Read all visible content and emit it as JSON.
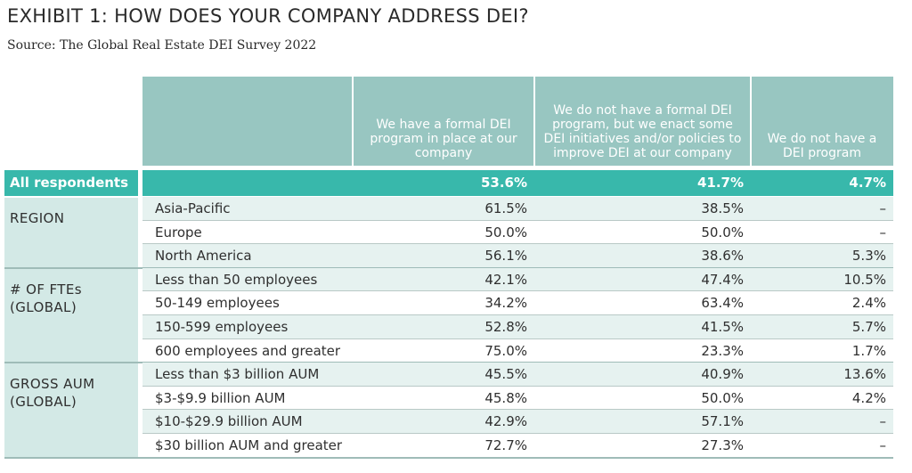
{
  "header": {
    "title": "EXHIBIT 1: HOW DOES YOUR COMPANY ADDRESS DEI?",
    "source": "Source: The Global Real Estate DEI Survey 2022"
  },
  "chart_data": {
    "type": "table",
    "columns": [
      "We have a formal DEI program in place at our company",
      "We do not have a formal DEI program, but we enact some DEI initiatives and/or policies to improve DEI at our company",
      "We do not have a DEI program"
    ],
    "all_respondents": {
      "label": "All respondents",
      "values": [
        "53.6%",
        "41.7%",
        "4.7%"
      ]
    },
    "groups": [
      {
        "label": "REGION",
        "rows": [
          {
            "label": "Asia-Pacific",
            "values": [
              "61.5%",
              "38.5%",
              "–"
            ]
          },
          {
            "label": "Europe",
            "values": [
              "50.0%",
              "50.0%",
              "–"
            ]
          },
          {
            "label": "North America",
            "values": [
              "56.1%",
              "38.6%",
              "5.3%"
            ]
          }
        ]
      },
      {
        "label": "# OF FTEs (GLOBAL)",
        "rows": [
          {
            "label": "Less than 50 employees",
            "values": [
              "42.1%",
              "47.4%",
              "10.5%"
            ]
          },
          {
            "label": "50-149 employees",
            "values": [
              "34.2%",
              "63.4%",
              "2.4%"
            ]
          },
          {
            "label": "150-599 employees",
            "values": [
              "52.8%",
              "41.5%",
              "5.7%"
            ]
          },
          {
            "label": "600 employees and greater",
            "values": [
              "75.0%",
              "23.3%",
              "1.7%"
            ]
          }
        ]
      },
      {
        "label": "GROSS AUM (GLOBAL)",
        "rows": [
          {
            "label": "Less than $3 billion AUM",
            "values": [
              "45.5%",
              "40.9%",
              "13.6%"
            ]
          },
          {
            "label": "$3-$9.9 billion AUM",
            "values": [
              "45.8%",
              "50.0%",
              "4.2%"
            ]
          },
          {
            "label": "$10-$29.9 billion AUM",
            "values": [
              "42.9%",
              "57.1%",
              "–"
            ]
          },
          {
            "label": "$30 billion AUM and greater",
            "values": [
              "72.7%",
              "27.3%",
              "–"
            ]
          }
        ]
      }
    ]
  }
}
